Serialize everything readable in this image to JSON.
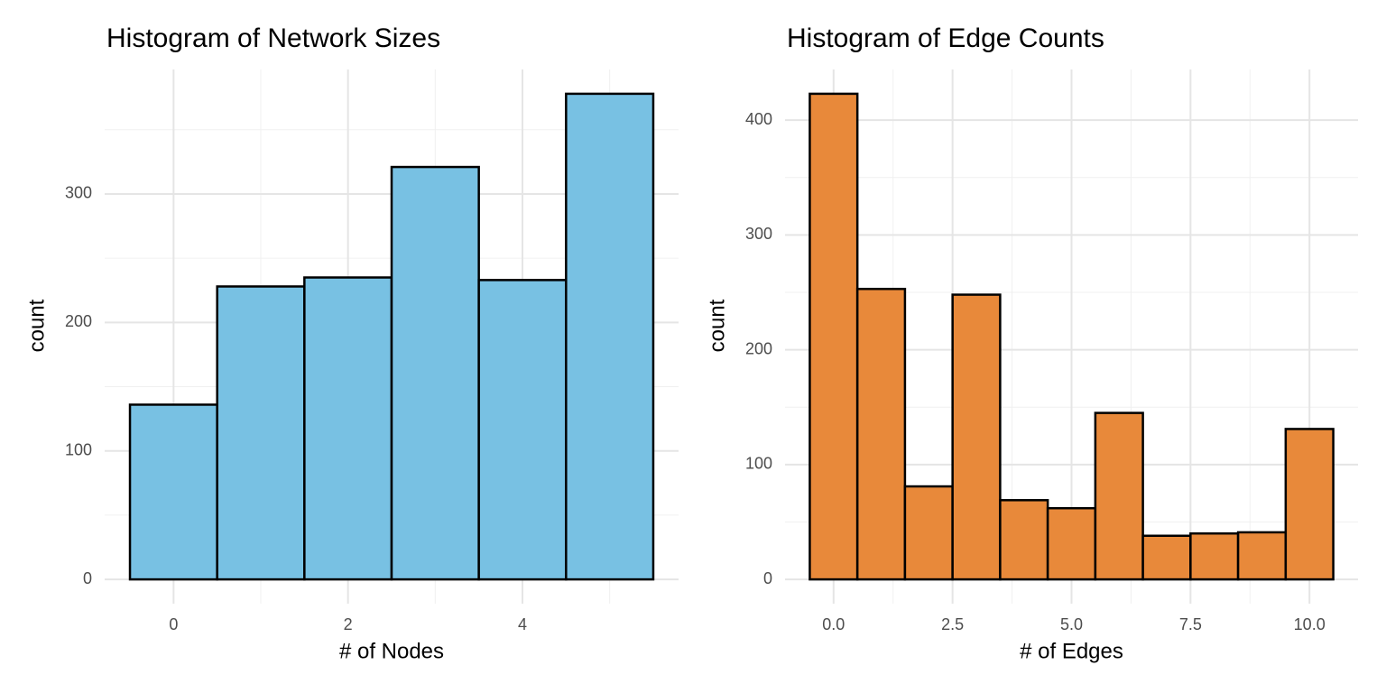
{
  "chart_data": [
    {
      "type": "histogram",
      "title": "Histogram of Network Sizes",
      "x_label": "# of Nodes",
      "y_label": "count",
      "bins": [
        -0.5,
        0.5,
        1.5,
        2.5,
        3.5,
        4.5,
        5.5
      ],
      "values": [
        136,
        228,
        235,
        321,
        233,
        378
      ],
      "color": "#78c1e3",
      "edge_color": "#000000",
      "xlim": [
        -0.79,
        5.79
      ],
      "ylim": [
        -18.9,
        396.9
      ],
      "xticks": [
        0,
        2,
        4
      ],
      "yticks": [
        0,
        100,
        200,
        300
      ],
      "minor_xticks": [
        1,
        3,
        5
      ],
      "minor_yticks": [
        50,
        150,
        250,
        350
      ],
      "grid": true
    },
    {
      "type": "histogram",
      "title": "Histogram of Edge Counts",
      "x_label": "# of Edges",
      "y_label": "count",
      "bins": [
        -0.5,
        0.5,
        1.5,
        2.5,
        3.5,
        4.5,
        5.5,
        6.5,
        7.5,
        8.5,
        9.5,
        10.5
      ],
      "values": [
        423,
        253,
        81,
        248,
        69,
        62,
        145,
        38,
        40,
        41,
        131
      ],
      "color": "#e8893a",
      "edge_color": "#000000",
      "xlim": [
        -1.02,
        11.02
      ],
      "ylim": [
        -21.15,
        444.15
      ],
      "xticks": [
        {
          "value": 0,
          "label": "0.0"
        },
        {
          "value": 2.5,
          "label": "2.5"
        },
        {
          "value": 5,
          "label": "5.0"
        },
        {
          "value": 7.5,
          "label": "7.5"
        },
        {
          "value": 10,
          "label": "10.0"
        }
      ],
      "yticks": [
        0,
        100,
        200,
        300,
        400
      ],
      "minor_xticks": [
        1.25,
        3.75,
        6.25,
        8.75
      ],
      "minor_yticks": [
        50,
        150,
        250,
        350
      ],
      "grid": true
    }
  ]
}
